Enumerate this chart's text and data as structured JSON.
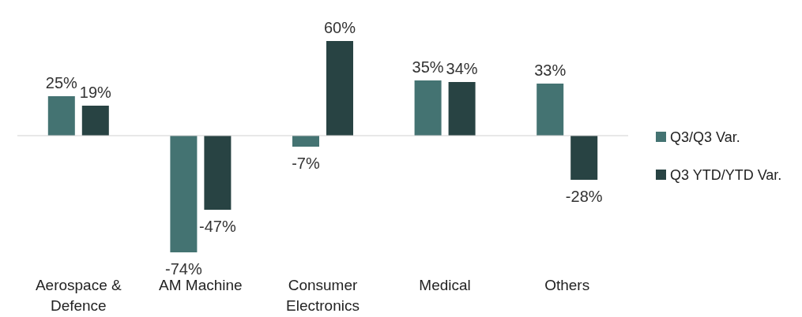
{
  "chart_data": {
    "type": "bar",
    "categories": [
      "Aerospace & Defence",
      "AM Machine",
      "Consumer Electronics",
      "Medical",
      "Others"
    ],
    "series": [
      {
        "name": "Q3/Q3 Var.",
        "color": "#447372",
        "values": [
          25,
          -74,
          -7,
          35,
          33
        ],
        "value_labels": [
          "25%",
          "-74%",
          "-7%",
          "35%",
          "33%"
        ]
      },
      {
        "name": "Q3 YTD/YTD Var.",
        "color": "#284343",
        "values": [
          19,
          -47,
          60,
          34,
          -28
        ],
        "value_labels": [
          "19%",
          "-47%",
          "60%",
          "34%",
          "-28%"
        ]
      }
    ],
    "legend": "right"
  }
}
